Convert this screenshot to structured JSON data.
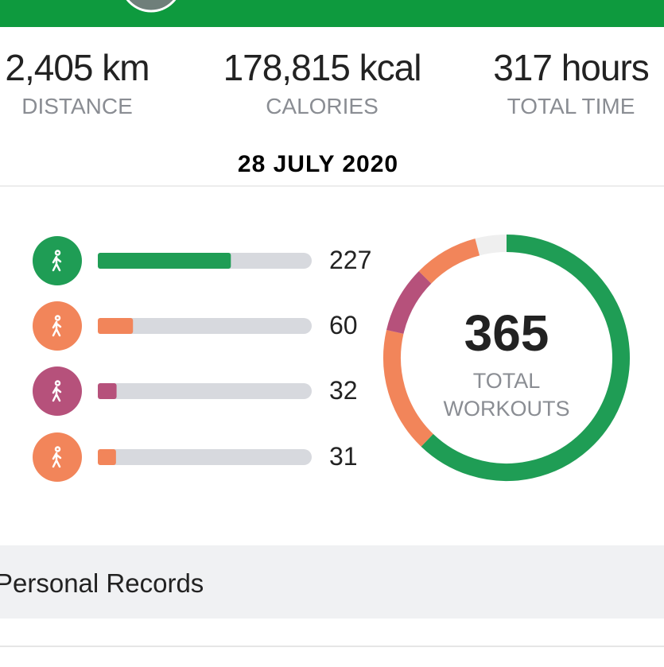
{
  "stats": [
    {
      "value": "2,405 km",
      "label": "DISTANCE"
    },
    {
      "value": "178,815 kcal",
      "label": "CALORIES"
    },
    {
      "value": "317 hours",
      "label": "TOTAL TIME"
    }
  ],
  "date": "28 JULY 2020",
  "workouts": {
    "total": 365,
    "total_label": "TOTAL WORKOUTS",
    "items": [
      {
        "count": 227,
        "color": "#1f9d55"
      },
      {
        "count": 60,
        "color": "#f2855a"
      },
      {
        "count": 32,
        "color": "#b6517b"
      },
      {
        "count": 31,
        "color": "#f2855a"
      }
    ]
  },
  "section": "Personal Records"
}
